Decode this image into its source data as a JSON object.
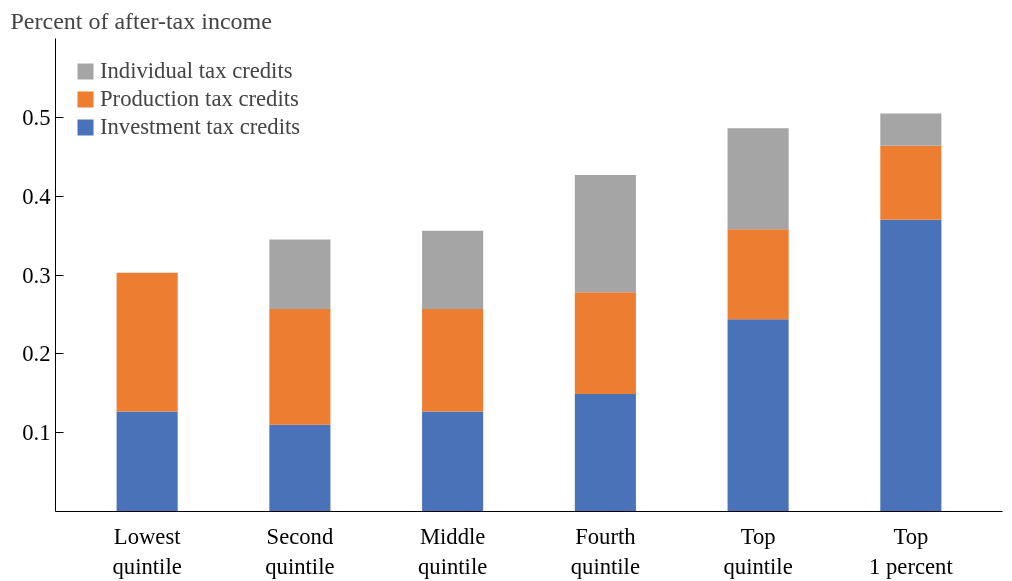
{
  "chart_data": {
    "type": "bar",
    "stacked": true,
    "ylabel": "Percent of after-tax income",
    "categories": [
      "Lowest\nquintile",
      "Second\nquintile",
      "Middle\nquintile",
      "Fourth\nquintile",
      "Top\nquintile",
      "Top\n1 percent"
    ],
    "series": [
      {
        "name": "Investment tax credits",
        "color": "#4a72b8",
        "values": [
          0.127,
          0.11,
          0.127,
          0.149,
          0.244,
          0.37
        ]
      },
      {
        "name": "Production tax credits",
        "color": "#ed7d31",
        "values": [
          0.176,
          0.147,
          0.13,
          0.129,
          0.114,
          0.094
        ]
      },
      {
        "name": "Individual tax credits",
        "color": "#a5a5a5",
        "values": [
          0,
          0.088,
          0.099,
          0.149,
          0.128,
          0.041
        ]
      }
    ],
    "ylim": [
      0,
      0.6
    ],
    "yticks": [
      0.1,
      0.2,
      0.3,
      0.4,
      0.5
    ],
    "grid": false,
    "legend": "top left"
  }
}
